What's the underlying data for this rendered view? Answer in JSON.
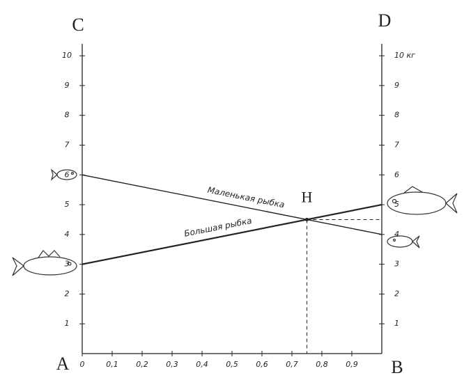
{
  "chart_data": {
    "type": "line",
    "corners": {
      "top_left": "C",
      "top_right": "D",
      "bottom_left": "A",
      "bottom_right": "B"
    },
    "x": [
      0,
      1
    ],
    "series": [
      {
        "name": "Маленькая рыбка",
        "color": "#222222",
        "values": [
          6,
          4
        ]
      },
      {
        "name": "Большая рыбка",
        "color": "#222222",
        "values": [
          3,
          5
        ]
      }
    ],
    "point": {
      "label": "Н",
      "x": 0.75,
      "y": 4.5
    },
    "xlim": [
      0,
      1
    ],
    "xticks": [
      0,
      {
        "value": 0.1,
        "label": "0,1"
      },
      {
        "value": 0.2,
        "label": "0,2"
      },
      {
        "value": 0.3,
        "label": "0,3"
      },
      {
        "value": 0.4,
        "label": "0,4"
      },
      {
        "value": 0.5,
        "label": "0,5"
      },
      {
        "value": 0.6,
        "label": "0,6"
      },
      {
        "value": 0.7,
        "label": "0,7"
      },
      {
        "value": 0.8,
        "label": "0,8"
      },
      {
        "value": 0.9,
        "label": "0,9"
      }
    ],
    "ylim": [
      0,
      10.4
    ],
    "yticks": [
      1,
      2,
      3,
      4,
      5,
      6,
      7,
      8,
      9,
      10
    ],
    "y2lim": [
      0,
      10.4
    ],
    "y2ticks": [
      1,
      2,
      3,
      4,
      5,
      6,
      7,
      8,
      9,
      {
        "value": 10,
        "label": "10 кг"
      }
    ]
  }
}
